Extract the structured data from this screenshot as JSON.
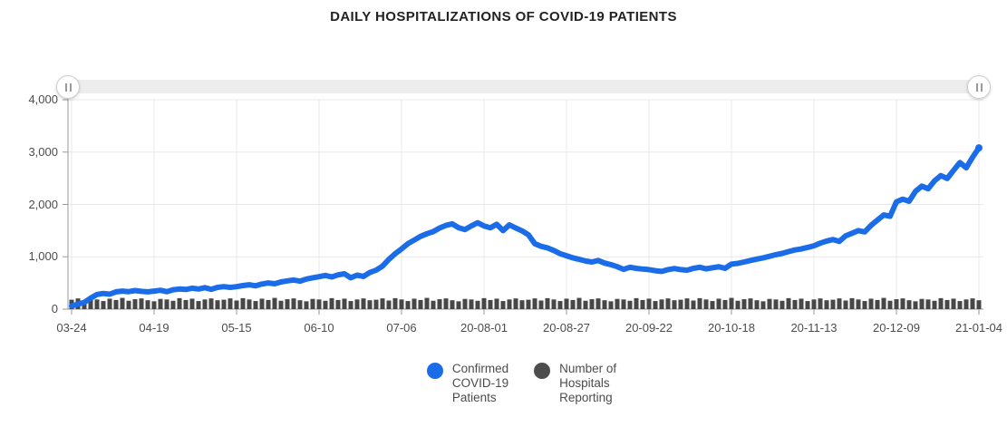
{
  "title": "DAILY HOSPITALIZATIONS OF COVID-19 PATIENTS",
  "slider": {
    "grip_icon": "grip-vertical-bars",
    "track_color": "#ededed",
    "range": "full"
  },
  "colors": {
    "confirmed_blue": "#1a6ce8",
    "hospitals_dark": "#474747",
    "legend_dark": "#4d4d4d",
    "grid": "#e8e8e8",
    "axis": "#9a9a9a",
    "tick_label": "#4c4c4c",
    "title_text": "#222222"
  },
  "axes": {
    "y": {
      "ticks": [
        {
          "value": 0,
          "label": "0"
        },
        {
          "value": 1000,
          "label": "1,000"
        },
        {
          "value": 2000,
          "label": "2,000"
        },
        {
          "value": 3000,
          "label": "3,000"
        },
        {
          "value": 4000,
          "label": "4,000"
        }
      ]
    },
    "x": {
      "tick_labels": [
        "03-24",
        "04-19",
        "05-15",
        "06-10",
        "07-06",
        "20-08-01",
        "20-08-27",
        "20-09-22",
        "20-10-18",
        "20-11-13",
        "20-12-09",
        "21-01-04"
      ],
      "tick_interval_days": 26
    }
  },
  "legend": [
    {
      "name": "confirmed",
      "label": "Confirmed\nCOVID-19\nPatients",
      "color": "#1a6ce8"
    },
    {
      "name": "hospitals",
      "label": "Number of\nHospitals\nReporting",
      "color": "#4d4d4d"
    }
  ],
  "chart_data": {
    "type": "line",
    "title": "DAILY HOSPITALIZATIONS OF COVID-19 PATIENTS",
    "xlabel": "",
    "ylabel": "",
    "ylim": [
      0,
      4000
    ],
    "grid": true,
    "legend_position": "bottom",
    "x_unit": "days since first x tick (03-24), sampled every 2 days",
    "x_step": 2,
    "x_range": [
      0,
      286
    ],
    "x_tick_labels": [
      "03-24",
      "04-19",
      "05-15",
      "06-10",
      "07-06",
      "20-08-01",
      "20-08-27",
      "20-09-22",
      "20-10-18",
      "20-11-13",
      "20-12-09",
      "21-01-04"
    ],
    "series": [
      {
        "name": "Confirmed COVID-19 Patients",
        "type": "line",
        "color": "#1a6ce8",
        "values": [
          60,
          95,
          130,
          210,
          280,
          300,
          285,
          330,
          345,
          335,
          355,
          340,
          330,
          345,
          360,
          335,
          370,
          385,
          375,
          400,
          385,
          410,
          380,
          415,
          430,
          415,
          430,
          450,
          465,
          445,
          480,
          500,
          485,
          520,
          540,
          555,
          535,
          575,
          600,
          620,
          645,
          615,
          655,
          675,
          600,
          650,
          625,
          700,
          745,
          820,
          950,
          1060,
          1150,
          1250,
          1320,
          1390,
          1440,
          1480,
          1550,
          1600,
          1630,
          1555,
          1520,
          1590,
          1650,
          1590,
          1555,
          1620,
          1500,
          1610,
          1550,
          1495,
          1420,
          1250,
          1200,
          1170,
          1120,
          1060,
          1020,
          980,
          950,
          920,
          900,
          930,
          880,
          850,
          810,
          760,
          800,
          780,
          765,
          755,
          735,
          720,
          755,
          775,
          755,
          745,
          780,
          800,
          770,
          790,
          810,
          780,
          860,
          875,
          900,
          930,
          955,
          980,
          1010,
          1040,
          1065,
          1100,
          1130,
          1150,
          1180,
          1210,
          1260,
          1300,
          1330,
          1295,
          1400,
          1450,
          1500,
          1475,
          1600,
          1700,
          1800,
          1775,
          2050,
          2100,
          2060,
          2250,
          2350,
          2300,
          2450,
          2550,
          2495,
          2650,
          2800,
          2700,
          2900,
          3080
        ]
      },
      {
        "name": "Number of Hospitals Reporting",
        "type": "bar",
        "color": "#474747",
        "values": [
          180,
          205,
          165,
          210,
          185,
          155,
          200,
          175,
          215,
          160,
          190,
          205,
          170,
          150,
          195,
          185,
          160,
          210,
          175,
          200,
          155,
          185,
          205,
          170,
          180,
          205,
          165,
          210,
          185,
          155,
          200,
          175,
          215,
          160,
          190,
          205,
          170,
          150,
          195,
          185,
          160,
          210,
          175,
          200,
          155,
          185,
          205,
          170,
          180,
          205,
          165,
          210,
          185,
          155,
          200,
          175,
          215,
          160,
          190,
          205,
          170,
          150,
          195,
          185,
          160,
          210,
          175,
          200,
          155,
          185,
          205,
          170,
          180,
          205,
          165,
          210,
          185,
          155,
          200,
          175,
          215,
          160,
          190,
          205,
          170,
          150,
          195,
          185,
          160,
          210,
          175,
          200,
          155,
          185,
          205,
          170,
          180,
          205,
          165,
          210,
          185,
          155,
          200,
          175,
          215,
          160,
          190,
          205,
          170,
          150,
          195,
          185,
          160,
          210,
          175,
          200,
          155,
          185,
          205,
          170,
          180,
          205,
          165,
          210,
          185,
          155,
          200,
          175,
          215,
          160,
          190,
          205,
          170,
          150,
          195,
          185,
          160,
          210,
          175,
          200,
          155,
          185,
          205,
          170
        ]
      }
    ]
  }
}
